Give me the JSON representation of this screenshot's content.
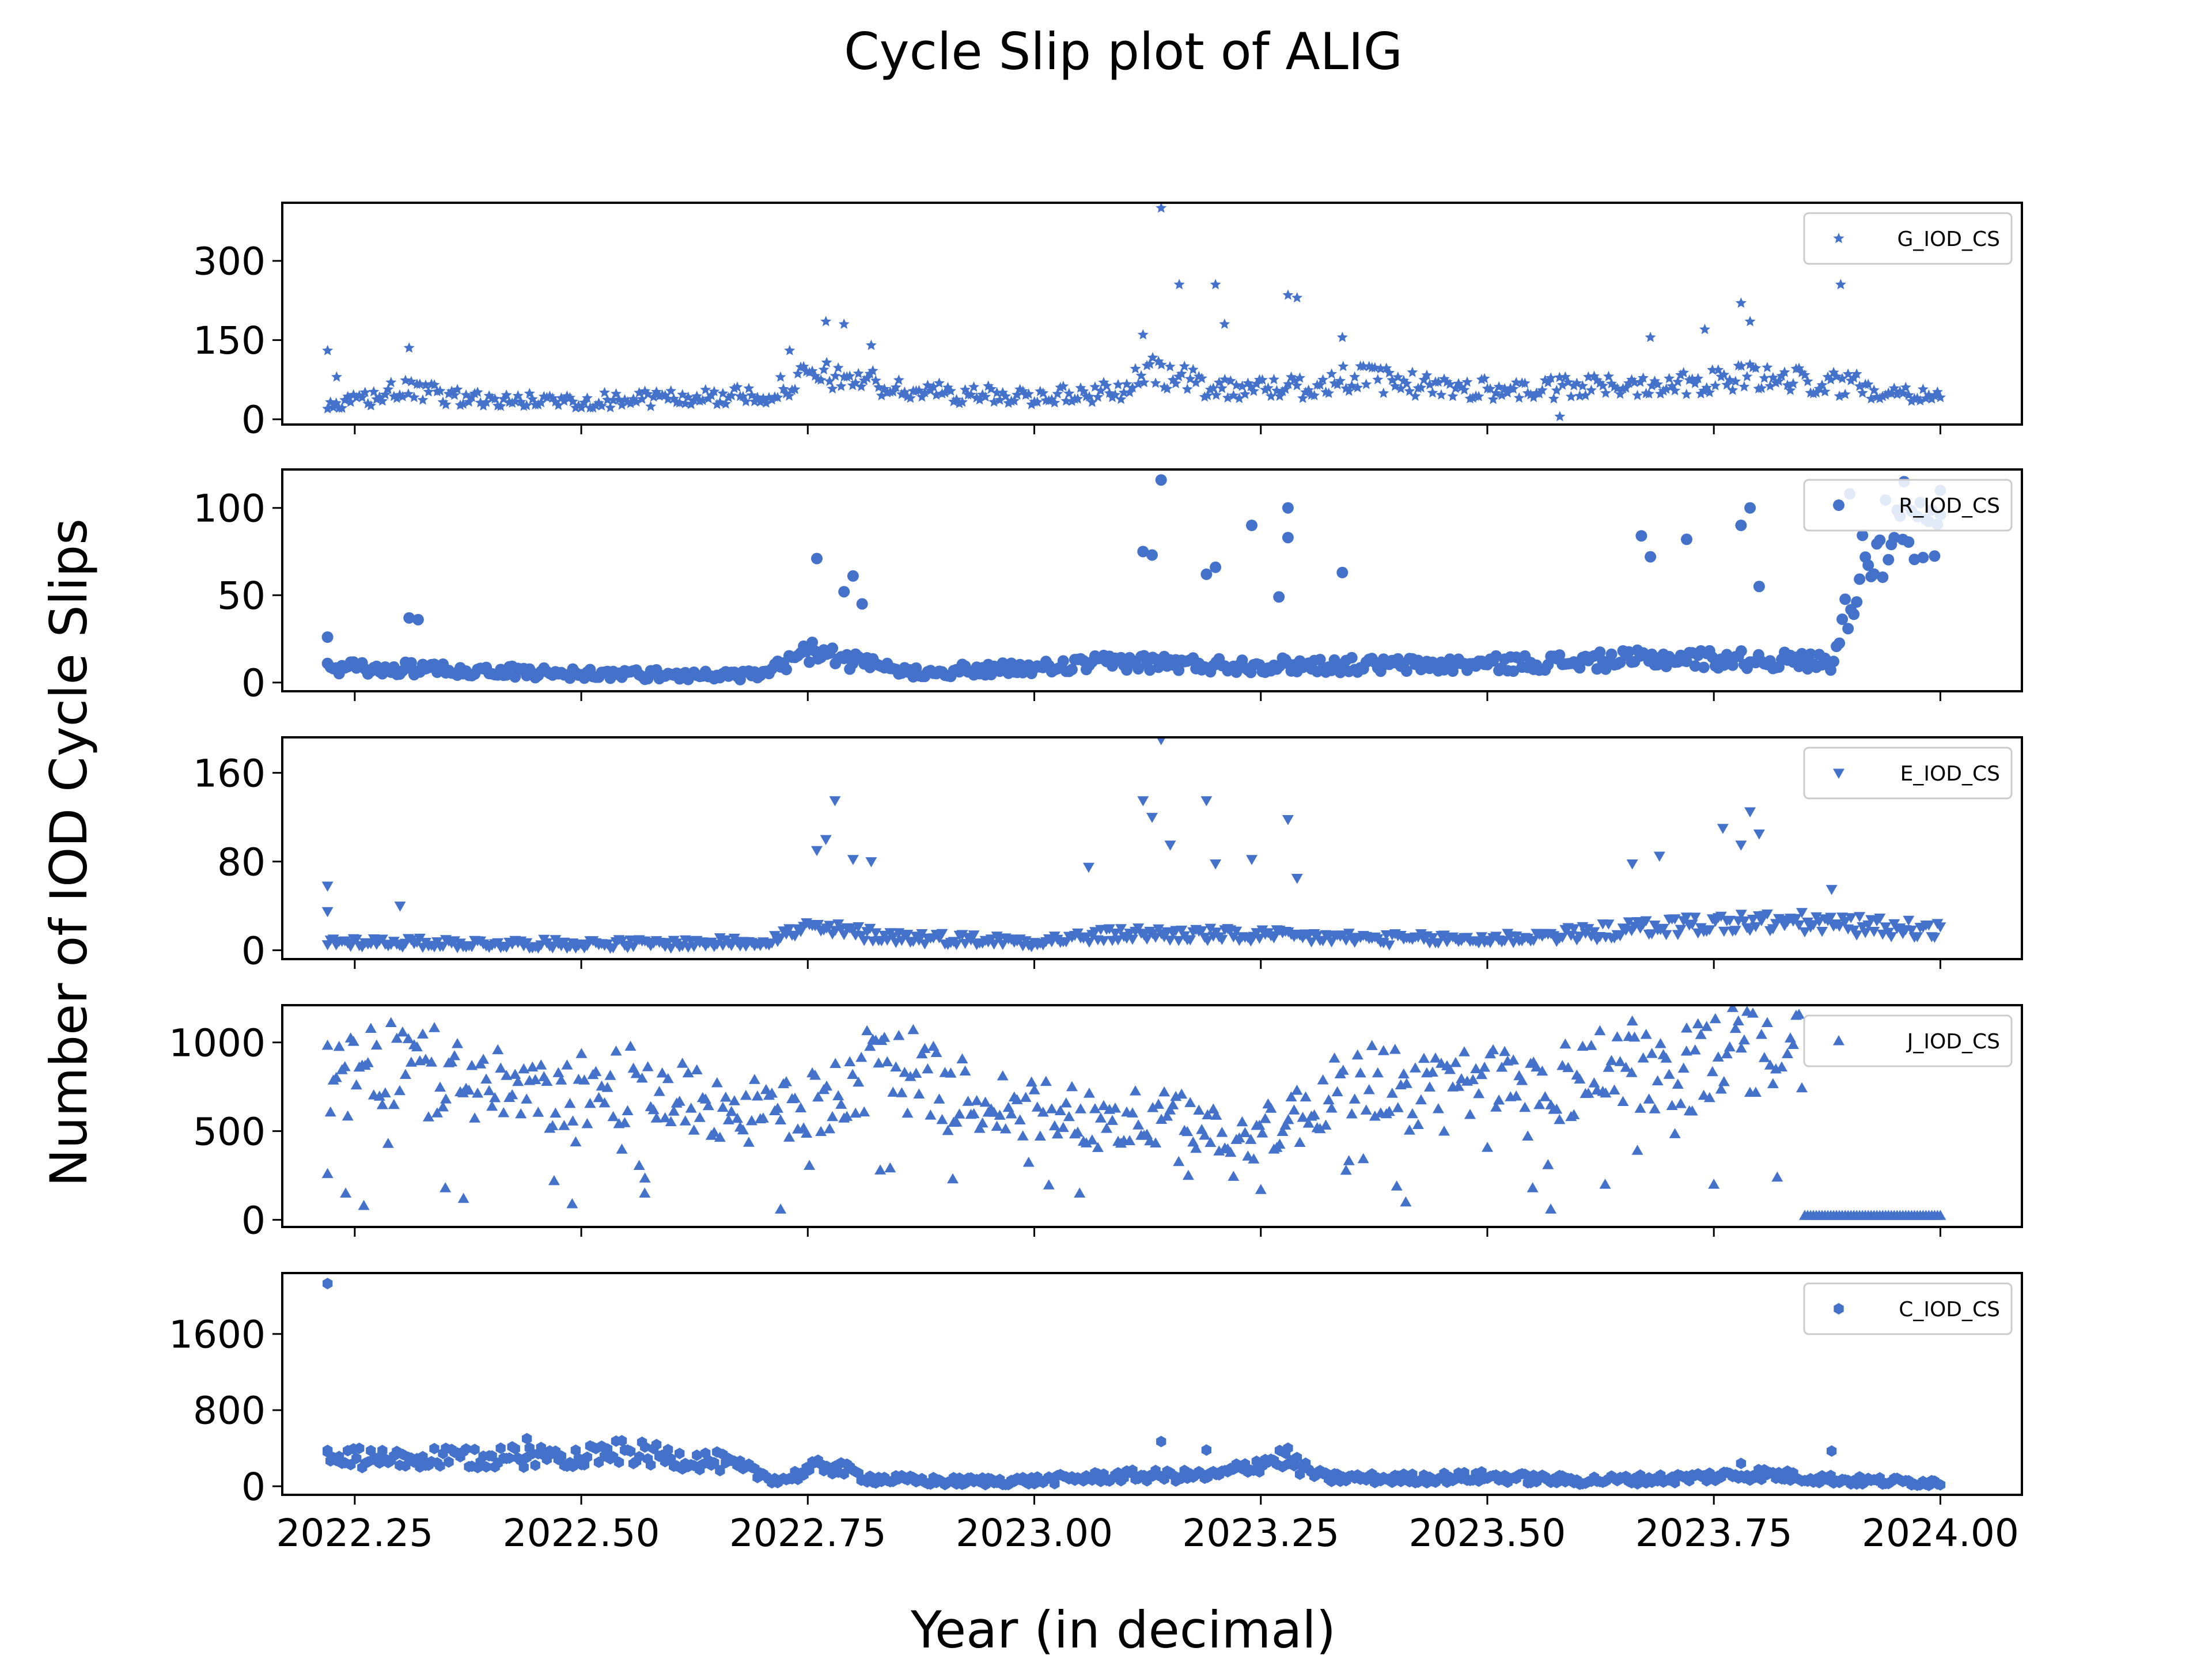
{
  "figure": {
    "title": "Cycle Slip plot of ALIG",
    "xlabel": "Year (in decimal)",
    "ylabel": "Number of IOD Cycle Slips",
    "marker_color": "#4472CA"
  },
  "chart_data": {
    "type": "scatter",
    "shared_x": true,
    "xlim": [
      2022.17,
      2024.09
    ],
    "x_ticks": [
      "2022.25",
      "2022.50",
      "2022.75",
      "2023.00",
      "2023.25",
      "2023.50",
      "2023.75",
      "2024.00"
    ],
    "x_tick_values": [
      2022.25,
      2022.5,
      2022.75,
      2023.0,
      2023.25,
      2023.5,
      2023.75,
      2024.0
    ],
    "x_range": [
      2022.22,
      2024.0
    ],
    "legend_position": "upper right",
    "grid": false,
    "panels": [
      {
        "series_name": "G_IOD_CS",
        "marker": "star",
        "ylim": [
          -10,
          410
        ],
        "y_ticks": [
          0,
          150,
          300
        ],
        "y_tick_labels": [
          "0",
          "150",
          "300"
        ],
        "anchors": [
          [
            2022.22,
            20
          ],
          [
            2022.3,
            55
          ],
          [
            2022.4,
            35
          ],
          [
            2022.5,
            35
          ],
          [
            2022.6,
            40
          ],
          [
            2022.7,
            45
          ],
          [
            2022.75,
            80
          ],
          [
            2022.8,
            80
          ],
          [
            2022.85,
            55
          ],
          [
            2022.95,
            45
          ],
          [
            2023.05,
            45
          ],
          [
            2023.1,
            60
          ],
          [
            2023.13,
            90
          ],
          [
            2023.2,
            60
          ],
          [
            2023.3,
            60
          ],
          [
            2023.35,
            80
          ],
          [
            2023.45,
            60
          ],
          [
            2023.55,
            55
          ],
          [
            2023.65,
            65
          ],
          [
            2023.75,
            75
          ],
          [
            2023.8,
            80
          ],
          [
            2023.9,
            65
          ],
          [
            2024.0,
            45
          ]
        ],
        "outliers": [
          [
            2022.22,
            130
          ],
          [
            2022.23,
            80
          ],
          [
            2022.31,
            135
          ],
          [
            2022.73,
            130
          ],
          [
            2022.77,
            185
          ],
          [
            2022.79,
            180
          ],
          [
            2022.82,
            140
          ],
          [
            2023.12,
            160
          ],
          [
            2023.14,
            400
          ],
          [
            2023.16,
            255
          ],
          [
            2023.2,
            255
          ],
          [
            2023.21,
            180
          ],
          [
            2023.28,
            235
          ],
          [
            2023.29,
            230
          ],
          [
            2023.34,
            155
          ],
          [
            2023.58,
            5
          ],
          [
            2023.68,
            155
          ],
          [
            2023.74,
            170
          ],
          [
            2023.78,
            220
          ],
          [
            2023.79,
            185
          ],
          [
            2023.89,
            255
          ]
        ]
      },
      {
        "series_name": "R_IOD_CS",
        "marker": "circle",
        "ylim": [
          -5,
          122
        ],
        "y_ticks": [
          0,
          50,
          100
        ],
        "y_tick_labels": [
          "0",
          "50",
          "100"
        ],
        "anchors": [
          [
            2022.22,
            8
          ],
          [
            2022.3,
            8
          ],
          [
            2022.5,
            5
          ],
          [
            2022.7,
            4
          ],
          [
            2022.75,
            18
          ],
          [
            2022.8,
            12
          ],
          [
            2022.85,
            6
          ],
          [
            2023.0,
            8
          ],
          [
            2023.1,
            12
          ],
          [
            2023.2,
            10
          ],
          [
            2023.3,
            10
          ],
          [
            2023.45,
            10
          ],
          [
            2023.6,
            12
          ],
          [
            2023.7,
            14
          ],
          [
            2023.88,
            12
          ],
          [
            2023.92,
            80
          ],
          [
            2024.0,
            82
          ]
        ],
        "outliers": [
          [
            2022.22,
            26
          ],
          [
            2022.31,
            37
          ],
          [
            2022.32,
            36
          ],
          [
            2022.76,
            71
          ],
          [
            2022.79,
            52
          ],
          [
            2022.8,
            61
          ],
          [
            2022.81,
            45
          ],
          [
            2023.12,
            75
          ],
          [
            2023.13,
            73
          ],
          [
            2023.14,
            116
          ],
          [
            2023.19,
            62
          ],
          [
            2023.2,
            66
          ],
          [
            2023.24,
            90
          ],
          [
            2023.27,
            49
          ],
          [
            2023.28,
            100
          ],
          [
            2023.28,
            83
          ],
          [
            2023.34,
            63
          ],
          [
            2023.67,
            84
          ],
          [
            2023.68,
            72
          ],
          [
            2023.72,
            82
          ],
          [
            2023.78,
            90
          ],
          [
            2023.79,
            100
          ],
          [
            2023.8,
            55
          ],
          [
            2023.9,
            108
          ],
          [
            2023.96,
            115
          ],
          [
            2024.0,
            110
          ]
        ]
      },
      {
        "series_name": "E_IOD_CS",
        "marker": "triangle-down",
        "ylim": [
          -8,
          192
        ],
        "y_ticks": [
          0,
          80,
          160
        ],
        "y_tick_labels": [
          "0",
          "80",
          "160"
        ],
        "anchors": [
          [
            2022.22,
            8
          ],
          [
            2022.4,
            6
          ],
          [
            2022.6,
            6
          ],
          [
            2022.7,
            8
          ],
          [
            2022.75,
            20
          ],
          [
            2022.85,
            12
          ],
          [
            2023.0,
            8
          ],
          [
            2023.1,
            15
          ],
          [
            2023.2,
            14
          ],
          [
            2023.3,
            12
          ],
          [
            2023.4,
            10
          ],
          [
            2023.5,
            10
          ],
          [
            2023.6,
            15
          ],
          [
            2023.7,
            22
          ],
          [
            2023.78,
            25
          ],
          [
            2023.85,
            25
          ],
          [
            2024.0,
            18
          ]
        ],
        "outliers": [
          [
            2022.22,
            58
          ],
          [
            2022.22,
            35
          ],
          [
            2022.3,
            40
          ],
          [
            2022.76,
            90
          ],
          [
            2022.77,
            100
          ],
          [
            2022.78,
            135
          ],
          [
            2022.8,
            82
          ],
          [
            2022.82,
            80
          ],
          [
            2023.06,
            75
          ],
          [
            2023.12,
            135
          ],
          [
            2023.13,
            120
          ],
          [
            2023.14,
            190
          ],
          [
            2023.15,
            95
          ],
          [
            2023.19,
            135
          ],
          [
            2023.2,
            78
          ],
          [
            2023.24,
            82
          ],
          [
            2023.28,
            118
          ],
          [
            2023.29,
            65
          ],
          [
            2023.66,
            78
          ],
          [
            2023.69,
            85
          ],
          [
            2023.76,
            110
          ],
          [
            2023.78,
            95
          ],
          [
            2023.79,
            125
          ],
          [
            2023.8,
            105
          ],
          [
            2023.88,
            55
          ]
        ]
      },
      {
        "series_name": "J_IOD_CS",
        "marker": "triangle-up",
        "ylim": [
          -40,
          1210
        ],
        "y_ticks": [
          0,
          500,
          1000
        ],
        "y_tick_labels": [
          "0",
          "500",
          "1000"
        ],
        "anchors": [
          [
            2022.22,
            760
          ],
          [
            2022.3,
            880
          ],
          [
            2022.35,
            820
          ],
          [
            2022.4,
            750
          ],
          [
            2022.45,
            680
          ],
          [
            2022.5,
            720
          ],
          [
            2022.55,
            760
          ],
          [
            2022.6,
            700
          ],
          [
            2022.65,
            640
          ],
          [
            2022.7,
            600
          ],
          [
            2022.75,
            620
          ],
          [
            2022.8,
            800
          ],
          [
            2022.85,
            880
          ],
          [
            2022.9,
            720
          ],
          [
            2022.95,
            680
          ],
          [
            2023.0,
            600
          ],
          [
            2023.05,
            600
          ],
          [
            2023.1,
            560
          ],
          [
            2023.15,
            560
          ],
          [
            2023.2,
            520
          ],
          [
            2023.25,
            480
          ],
          [
            2023.3,
            620
          ],
          [
            2023.35,
            750
          ],
          [
            2023.4,
            800
          ],
          [
            2023.45,
            700
          ],
          [
            2023.5,
            780
          ],
          [
            2023.55,
            750
          ],
          [
            2023.6,
            800
          ],
          [
            2023.65,
            900
          ],
          [
            2023.7,
            820
          ],
          [
            2023.75,
            900
          ],
          [
            2023.8,
            1000
          ],
          [
            2023.85,
            980
          ]
        ],
        "outliers": [
          [
            2022.22,
            260
          ],
          [
            2022.24,
            150
          ],
          [
            2022.26,
            80
          ],
          [
            2022.35,
            180
          ],
          [
            2022.37,
            120
          ],
          [
            2022.47,
            220
          ],
          [
            2022.49,
            90
          ],
          [
            2022.57,
            150
          ],
          [
            2022.72,
            60
          ],
          [
            2022.83,
            280
          ],
          [
            2022.91,
            230
          ],
          [
            2023.05,
            150
          ],
          [
            2023.17,
            250
          ],
          [
            2023.25,
            170
          ],
          [
            2023.4,
            190
          ],
          [
            2023.41,
            100
          ],
          [
            2023.55,
            180
          ],
          [
            2023.57,
            60
          ],
          [
            2023.63,
            200
          ],
          [
            2023.66,
            1120
          ],
          [
            2023.72,
            1080
          ],
          [
            2023.75,
            200
          ],
          [
            2023.82,
            240
          ]
        ],
        "zero_run": [
          2023.85,
          24.0
        ]
      },
      {
        "series_name": "C_IOD_CS",
        "marker": "hexagon",
        "ylim": [
          -90,
          2240
        ],
        "y_ticks": [
          0,
          800,
          1600
        ],
        "y_tick_labels": [
          "0",
          "800",
          "1600"
        ],
        "anchors": [
          [
            2022.22,
            300
          ],
          [
            2022.3,
            280
          ],
          [
            2022.4,
            300
          ],
          [
            2022.5,
            330
          ],
          [
            2022.55,
            360
          ],
          [
            2022.6,
            300
          ],
          [
            2022.65,
            260
          ],
          [
            2022.7,
            120
          ],
          [
            2022.72,
            60
          ],
          [
            2022.77,
            230
          ],
          [
            2022.82,
            80
          ],
          [
            2022.9,
            50
          ],
          [
            2023.0,
            60
          ],
          [
            2023.1,
            110
          ],
          [
            2023.2,
            110
          ],
          [
            2023.27,
            300
          ],
          [
            2023.32,
            90
          ],
          [
            2023.4,
            80
          ],
          [
            2023.5,
            100
          ],
          [
            2023.6,
            60
          ],
          [
            2023.7,
            80
          ],
          [
            2023.8,
            130
          ],
          [
            2023.9,
            60
          ],
          [
            2024.0,
            40
          ]
        ],
        "outliers": [
          [
            2022.22,
            2130
          ],
          [
            2022.22,
            360
          ],
          [
            2022.44,
            500
          ],
          [
            2023.14,
            470
          ],
          [
            2023.19,
            380
          ],
          [
            2023.28,
            400
          ],
          [
            2023.78,
            240
          ],
          [
            2023.88,
            370
          ]
        ]
      }
    ]
  }
}
